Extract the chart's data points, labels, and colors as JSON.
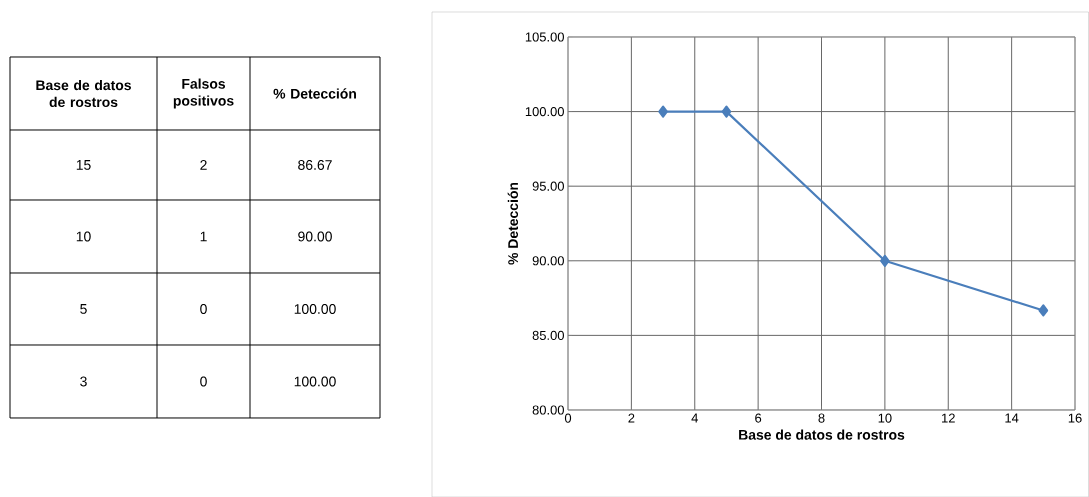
{
  "chart_data": [
    {
      "type": "other",
      "annotations": [
        "Base de datos de rostros",
        "Falsos positivos",
        "% Detección",
        "15",
        "2",
        "86.67",
        "10",
        "1",
        "90.00",
        "5",
        "0",
        "100.00",
        "3",
        "0",
        "100.00"
      ]
    },
    {
      "type": "line",
      "xlabel": "Base de datos de rostros",
      "ylabel": "% Detección",
      "x": [
        3,
        5,
        10,
        15
      ],
      "series": [
        {
          "color": "#4a7ebb",
          "values": [
            100,
            100,
            90,
            86.67
          ]
        }
      ],
      "xlim": [
        0,
        16
      ],
      "xticks": [
        0,
        2,
        4,
        6,
        8,
        10,
        12,
        14,
        16
      ],
      "ylim": [
        80,
        105
      ],
      "yticks": [
        {
          "value": 80,
          "label": "80.00"
        },
        {
          "value": 85,
          "label": "85.00"
        },
        {
          "value": 90,
          "label": "90.00"
        },
        {
          "value": 95,
          "label": "95.00"
        },
        {
          "value": 100,
          "label": "100.00"
        },
        {
          "value": 105,
          "label": "105.00"
        }
      ],
      "grid": true,
      "marker": "diamond",
      "line_style": "solid"
    }
  ]
}
